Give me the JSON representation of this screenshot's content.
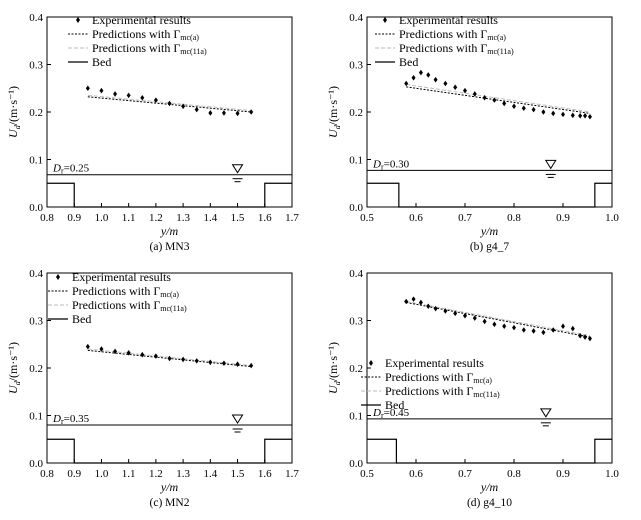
{
  "chart_data": [
    {
      "type": "scatter",
      "caption": "(a) MN3",
      "xlabel": "y/m",
      "ylabel": "U_d/(m·s⁻¹)",
      "xlim": [
        0.8,
        1.7
      ],
      "ylim": [
        0,
        0.4
      ],
      "xticks": [
        "0.8",
        "0.9",
        "1.0",
        "1.1",
        "1.2",
        "1.3",
        "1.4",
        "1.5",
        "1.6",
        "1.7"
      ],
      "yticks": [
        "0.0",
        "0.1",
        "0.2",
        "0.3",
        "0.4"
      ],
      "legend_position": "top-right",
      "legend": [
        "Experimental results",
        "Predictions with Γmc(a)",
        "Predictions with Γmc(11a)",
        "Bed"
      ],
      "dr_label": "D",
      "dr_sub": "r",
      "dr_value": "=0.25",
      "water_level": 0.068,
      "water_symbol_x": 1.5,
      "experimental": {
        "x": [
          0.95,
          1.0,
          1.05,
          1.1,
          1.15,
          1.2,
          1.25,
          1.3,
          1.35,
          1.4,
          1.45,
          1.5,
          1.55
        ],
        "y": [
          0.25,
          0.245,
          0.238,
          0.235,
          0.23,
          0.225,
          0.218,
          0.212,
          0.205,
          0.198,
          0.198,
          0.197,
          0.2
        ]
      },
      "pred_a": {
        "x": [
          0.95,
          1.55
        ],
        "y": [
          0.232,
          0.2
        ]
      },
      "pred_11a": {
        "x": [
          0.95,
          1.55
        ],
        "y": [
          0.235,
          0.203
        ]
      },
      "bed": {
        "x": [
          0.8,
          0.8,
          0.9,
          0.9,
          1.6,
          1.6,
          1.7
        ],
        "y": [
          0.05,
          0.05,
          0.05,
          0,
          0,
          0.05,
          0.05
        ]
      }
    },
    {
      "type": "scatter",
      "caption": "(b) g4_7",
      "xlabel": "y/m",
      "ylabel": "U_d/(m·s⁻¹)",
      "xlim": [
        0.5,
        1.0
      ],
      "ylim": [
        0,
        0.4
      ],
      "xticks": [
        "0.5",
        "0.6",
        "0.7",
        "0.8",
        "0.9",
        "1.0"
      ],
      "yticks": [
        "0.0",
        "0.1",
        "0.2",
        "0.3",
        "0.4"
      ],
      "legend_position": "top-right",
      "legend": [
        "Experimental results",
        "Predictions with Γmc(a)",
        "Predictions with Γmc(11a)",
        "Bed"
      ],
      "dr_label": "D",
      "dr_sub": "r",
      "dr_value": "=0.30",
      "water_level": 0.077,
      "water_symbol_x": 0.875,
      "experimental": {
        "x": [
          0.58,
          0.595,
          0.61,
          0.625,
          0.64,
          0.66,
          0.68,
          0.7,
          0.72,
          0.74,
          0.76,
          0.78,
          0.8,
          0.82,
          0.84,
          0.86,
          0.88,
          0.9,
          0.92,
          0.935,
          0.945,
          0.955
        ],
        "y": [
          0.26,
          0.272,
          0.283,
          0.278,
          0.268,
          0.26,
          0.252,
          0.245,
          0.238,
          0.23,
          0.225,
          0.218,
          0.212,
          0.208,
          0.205,
          0.2,
          0.197,
          0.195,
          0.193,
          0.192,
          0.192,
          0.19
        ]
      },
      "pred_a": {
        "x": [
          0.58,
          0.955
        ],
        "y": [
          0.253,
          0.197
        ]
      },
      "pred_11a": {
        "x": [
          0.58,
          0.955
        ],
        "y": [
          0.258,
          0.2
        ]
      },
      "bed": {
        "x": [
          0.5,
          0.5,
          0.565,
          0.565,
          0.965,
          0.965,
          1.0
        ],
        "y": [
          0.05,
          0.05,
          0.05,
          0,
          0,
          0.05,
          0.05
        ]
      }
    },
    {
      "type": "scatter",
      "caption": "(c) MN2",
      "xlabel": "y/m",
      "ylabel": "U_d/(m·s⁻¹)",
      "xlim": [
        0.8,
        1.7
      ],
      "ylim": [
        0,
        0.4
      ],
      "xticks": [
        "0.8",
        "0.9",
        "1.0",
        "1.1",
        "1.2",
        "1.3",
        "1.4",
        "1.5",
        "1.6",
        "1.7"
      ],
      "yticks": [
        "0.0",
        "0.1",
        "0.2",
        "0.3",
        "0.4"
      ],
      "legend_position": "top-right",
      "legend": [
        "Experimental results",
        "Predictions with Γmc(a)",
        "Predictions with Γmc(11a)",
        "Bed"
      ],
      "dr_label": "D",
      "dr_sub": "r",
      "dr_value": "=0.35",
      "water_level": 0.08,
      "water_symbol_x": 1.5,
      "experimental": {
        "x": [
          0.95,
          1.0,
          1.05,
          1.1,
          1.15,
          1.2,
          1.25,
          1.3,
          1.35,
          1.4,
          1.45,
          1.5,
          1.55
        ],
        "y": [
          0.245,
          0.24,
          0.235,
          0.232,
          0.228,
          0.225,
          0.22,
          0.218,
          0.215,
          0.212,
          0.21,
          0.208,
          0.205
        ]
      },
      "pred_a": {
        "x": [
          0.95,
          1.55
        ],
        "y": [
          0.237,
          0.203
        ]
      },
      "pred_11a": {
        "x": [
          0.95,
          1.55
        ],
        "y": [
          0.24,
          0.205
        ]
      },
      "bed": {
        "x": [
          0.8,
          0.8,
          0.9,
          0.9,
          1.6,
          1.6,
          1.7
        ],
        "y": [
          0.05,
          0.05,
          0.05,
          0,
          0,
          0.05,
          0.05
        ]
      }
    },
    {
      "type": "scatter",
      "caption": "(d) g4_10",
      "xlabel": "y/m",
      "ylabel": "U_d/(m·s⁻¹)",
      "xlim": [
        0.5,
        1.0
      ],
      "ylim": [
        0,
        0.4
      ],
      "xticks": [
        "0.5",
        "0.6",
        "0.7",
        "0.8",
        "0.9",
        "1.0"
      ],
      "yticks": [
        "0.0",
        "0.1",
        "0.2",
        "0.3",
        "0.4"
      ],
      "legend_position": "center-left",
      "legend": [
        "Experimental results",
        "Predictions with Γmc(a)",
        "Predictions with Γmc(11a)",
        "Bed"
      ],
      "dr_label": "D",
      "dr_sub": "r",
      "dr_value": "=0.45",
      "water_level": 0.093,
      "water_symbol_x": 0.865,
      "experimental": {
        "x": [
          0.58,
          0.595,
          0.61,
          0.625,
          0.64,
          0.66,
          0.68,
          0.7,
          0.72,
          0.74,
          0.76,
          0.78,
          0.8,
          0.82,
          0.84,
          0.86,
          0.88,
          0.9,
          0.92,
          0.935,
          0.945,
          0.955
        ],
        "y": [
          0.34,
          0.345,
          0.338,
          0.33,
          0.325,
          0.32,
          0.315,
          0.31,
          0.305,
          0.298,
          0.292,
          0.288,
          0.285,
          0.28,
          0.278,
          0.275,
          0.28,
          0.288,
          0.283,
          0.268,
          0.265,
          0.262
        ]
      },
      "pred_a": {
        "x": [
          0.58,
          0.955
        ],
        "y": [
          0.338,
          0.265
        ]
      },
      "pred_11a": {
        "x": [
          0.58,
          0.955
        ],
        "y": [
          0.34,
          0.268
        ]
      },
      "bed": {
        "x": [
          0.5,
          0.5,
          0.56,
          0.56,
          0.965,
          0.965,
          1.0
        ],
        "y": [
          0.05,
          0.05,
          0.05,
          0,
          0,
          0.05,
          0.05
        ]
      }
    }
  ]
}
